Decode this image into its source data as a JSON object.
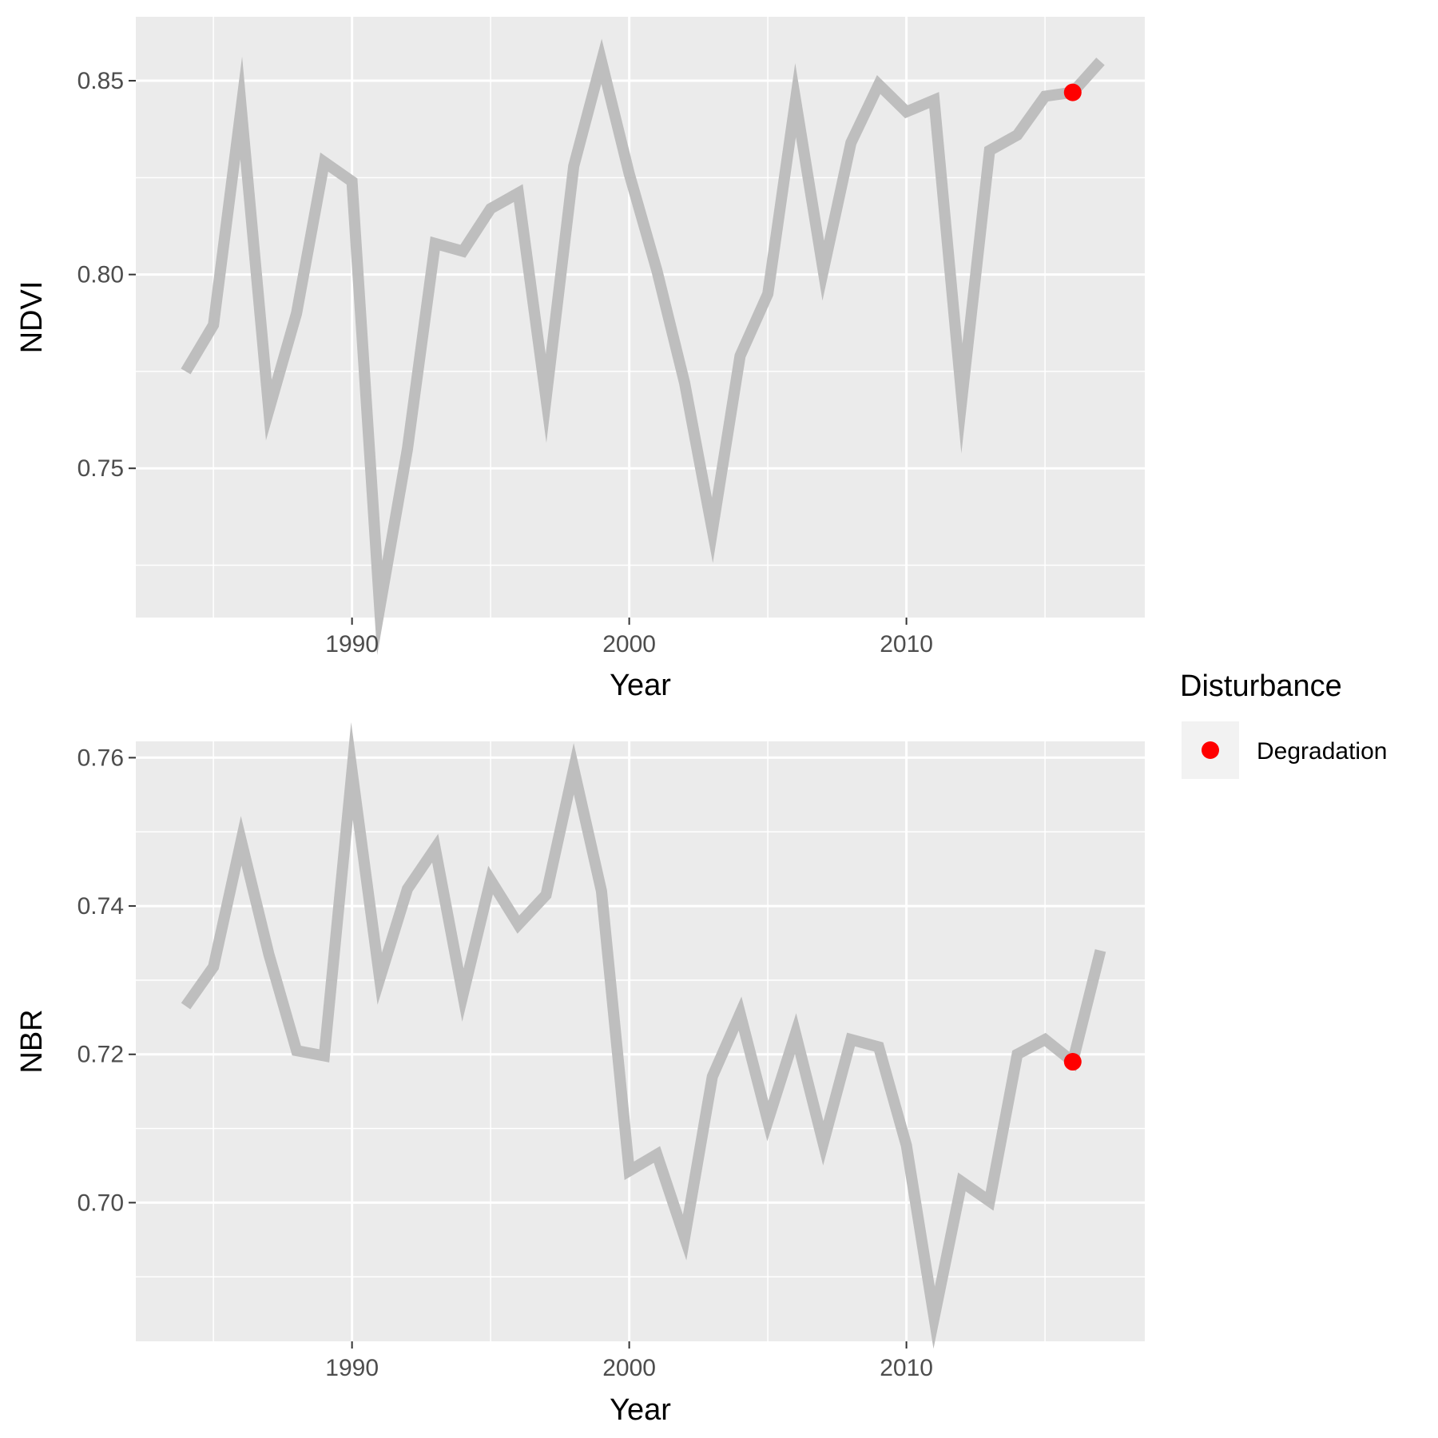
{
  "chart_data": [
    {
      "type": "line",
      "xlabel": "Year",
      "ylabel": "NDVI",
      "xlim": [
        1982.2,
        2018.6
      ],
      "ylim": [
        0.7115,
        0.8665
      ],
      "x_ticks": [
        1990,
        2000,
        2010
      ],
      "x_tick_labels": [
        "1990",
        "2000",
        "2010"
      ],
      "y_ticks": [
        0.75,
        0.8,
        0.85
      ],
      "y_tick_labels": [
        "0.75",
        "0.80",
        "0.85"
      ],
      "grid": true,
      "series": [
        {
          "x": [
            1984,
            1985,
            1986,
            1987,
            1988,
            1989,
            1990,
            1991,
            1992,
            1993,
            1994,
            1995,
            1996,
            1997,
            1998,
            1999,
            2000,
            2001,
            2002,
            2003,
            2004,
            2005,
            2006,
            2007,
            2008,
            2009,
            2010,
            2011,
            2012,
            2013,
            2014,
            2015,
            2016,
            2017
          ],
          "y": [
            0.775,
            0.787,
            0.843,
            0.765,
            0.79,
            0.829,
            0.824,
            0.714,
            0.755,
            0.808,
            0.806,
            0.817,
            0.821,
            0.768,
            0.828,
            0.855,
            0.826,
            0.801,
            0.772,
            0.734,
            0.779,
            0.795,
            0.845,
            0.801,
            0.834,
            0.849,
            0.842,
            0.845,
            0.768,
            0.832,
            0.836,
            0.846,
            0.847,
            0.855
          ]
        }
      ],
      "points": [
        {
          "x": 2016,
          "y": 0.847,
          "label": "Degradation"
        }
      ]
    },
    {
      "type": "line",
      "xlabel": "Year",
      "ylabel": "NBR",
      "xlim": [
        1982.2,
        2018.6
      ],
      "ylim": [
        0.6813,
        0.7622
      ],
      "x_ticks": [
        1990,
        2000,
        2010
      ],
      "x_tick_labels": [
        "1990",
        "2000",
        "2010"
      ],
      "y_ticks": [
        0.7,
        0.72,
        0.74,
        0.76
      ],
      "y_tick_labels": [
        "0.70",
        "0.72",
        "0.74",
        "0.76"
      ],
      "grid": true,
      "series": [
        {
          "x": [
            1984,
            1985,
            1986,
            1987,
            1988,
            1989,
            1990,
            1991,
            1992,
            1993,
            1994,
            1995,
            1996,
            1997,
            1998,
            1999,
            2000,
            2001,
            2002,
            2003,
            2004,
            2005,
            2006,
            2007,
            2008,
            2009,
            2010,
            2011,
            2012,
            2013,
            2014,
            2015,
            2016,
            2017
          ],
          "y": [
            0.7265,
            0.7318,
            0.7488,
            0.7335,
            0.7205,
            0.7198,
            0.7582,
            0.7302,
            0.7423,
            0.7478,
            0.728,
            0.7435,
            0.7375,
            0.7415,
            0.7585,
            0.742,
            0.7043,
            0.7065,
            0.6953,
            0.717,
            0.7255,
            0.711,
            0.7228,
            0.708,
            0.722,
            0.721,
            0.7077,
            0.6845,
            0.7028,
            0.7002,
            0.72,
            0.722,
            0.719,
            0.734
          ]
        }
      ],
      "points": [
        {
          "x": 2016,
          "y": 0.719,
          "label": "Degradation"
        }
      ]
    }
  ],
  "legend": {
    "title": "Disturbance",
    "label": "Degradation",
    "placement": "right"
  },
  "colors": {
    "panel_bg": "#ebebeb",
    "grid": "#ffffff",
    "line": "#bebebe",
    "point": "#ff0000",
    "legend_key_bg": "#f2f2f2"
  }
}
